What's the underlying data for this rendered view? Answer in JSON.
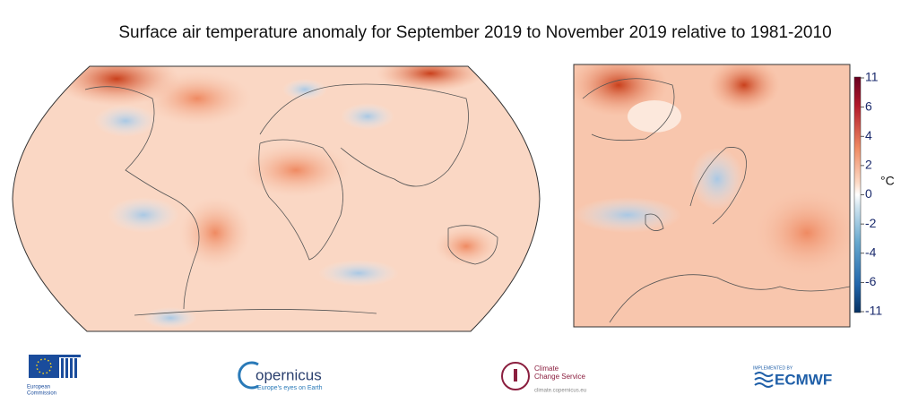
{
  "title": "Surface air temperature anomaly for September 2019 to November 2019 relative to 1981-2010",
  "colorbar": {
    "unit": "°C",
    "ticks": [
      11,
      6,
      4,
      2,
      0,
      -2,
      -4,
      -6,
      -11
    ]
  },
  "logos": {
    "ec": {
      "line1": "European",
      "line2": "Commission"
    },
    "copernicus": {
      "name": "opernicus",
      "tagline": "Europe's eyes on Earth"
    },
    "c3s": {
      "line1": "Climate",
      "line2": "Change Service",
      "url": "climate.copernicus.eu"
    },
    "ecmwf": {
      "small": "IMPLEMENTED BY",
      "name": "ECMWF"
    }
  }
}
